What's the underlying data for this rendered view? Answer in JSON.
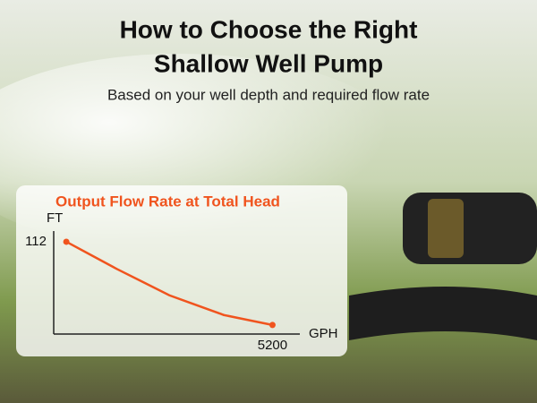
{
  "header": {
    "title_line1": "How to Choose the Right",
    "title_line2": "Shallow Well Pump",
    "subtitle": "Based on your well depth and required flow rate"
  },
  "chart_data": {
    "type": "line",
    "title": "Output Flow Rate at Total Head",
    "x_label": "GPH",
    "y_label": "FT",
    "series": [
      {
        "name": "Output flow rate",
        "color": "#f0541e",
        "x": [
          300,
          1500,
          2750,
          4050,
          5200
        ],
        "values": [
          112,
          79,
          47,
          23,
          11
        ]
      }
    ],
    "xlim": [
      0,
      5850
    ],
    "ylim": [
      0,
      125
    ],
    "xticks": [
      5200
    ],
    "yticks": [
      112
    ],
    "grid": false
  }
}
